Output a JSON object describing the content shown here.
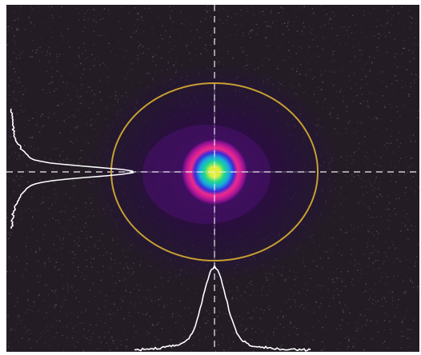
{
  "view": {
    "background_color": "#231c24",
    "noise_colors": [
      "#4a3f4a",
      "#5a4f5a",
      "#6b6070",
      "#3a3040"
    ],
    "beam_colors": [
      "#200a30",
      "#3c0e5c",
      "#7a108a",
      "#c01a96",
      "#ee2a8c",
      "#3a2ad8",
      "#1aa8e0",
      "#20d88c",
      "#f0f020"
    ],
    "ellipse_color": "#c8a032",
    "crosshair_color": "#f0f0f0",
    "centerline_color": "#e0e0e0",
    "profile_color": "#ffffff"
  },
  "icons": {
    "crosshair": "crosshair-icon",
    "ellipse": "fit-ellipse-icon"
  }
}
